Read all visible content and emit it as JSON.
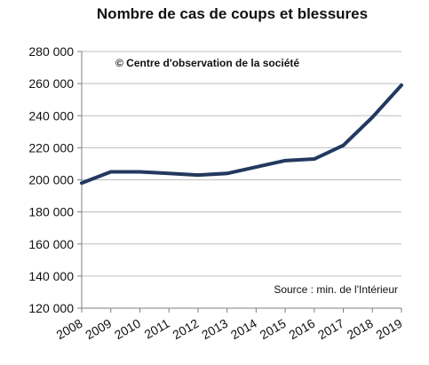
{
  "chart_data": {
    "type": "line",
    "title": "Nombre de cas de coups et blessures",
    "xlabel": "",
    "ylabel": "",
    "categories": [
      "2008",
      "2009",
      "2010",
      "2011",
      "2012",
      "2013",
      "2014",
      "2015",
      "2016",
      "2017",
      "2018",
      "2019"
    ],
    "series": [
      {
        "values": [
          198000,
          205000,
          205000,
          204000,
          203000,
          204000,
          208000,
          212000,
          213000,
          221500,
          239000,
          259000
        ]
      }
    ],
    "ylim": [
      120000,
      280000
    ],
    "yticks": [
      120000,
      140000,
      160000,
      180000,
      200000,
      220000,
      240000,
      260000,
      280000
    ],
    "ytick_labels": [
      "120 000",
      "140 000",
      "160 000",
      "180 000",
      "200 000",
      "220 000",
      "240 000",
      "260 000",
      "280 000"
    ],
    "grid": true,
    "line_color": "#1f3864",
    "annotations": {
      "copyright": "© Centre d'observation de la société",
      "source": "Source :  min. de l'Intérieur"
    }
  }
}
